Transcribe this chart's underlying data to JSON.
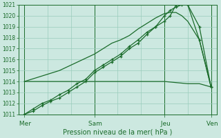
{
  "xlabel": "Pression niveau de la mer( hPa )",
  "bg_color": "#cce8e0",
  "grid_color": "#99ccbb",
  "line_color": "#1a6b2a",
  "ylim": [
    1011,
    1021
  ],
  "yticks": [
    1011,
    1012,
    1013,
    1014,
    1015,
    1016,
    1017,
    1018,
    1019,
    1020,
    1021
  ],
  "day_labels": [
    " Mer",
    " Sam",
    " Jeu",
    " Ven"
  ],
  "day_positions": [
    0,
    24,
    48,
    64
  ],
  "xlim": [
    -2,
    66
  ],
  "line1_x": [
    0,
    3,
    6,
    9,
    12,
    15,
    18,
    21,
    24,
    27,
    30,
    33,
    36,
    39,
    42,
    45,
    48,
    50,
    52,
    56,
    60,
    64
  ],
  "line1_y": [
    1011,
    1011.5,
    1012,
    1012.3,
    1012.8,
    1013.2,
    1013.8,
    1014.2,
    1015,
    1015.5,
    1016,
    1016.5,
    1017.2,
    1017.8,
    1018.5,
    1019.0,
    1019.5,
    1020.0,
    1021.0,
    1021.0,
    1017.8,
    1013.5
  ],
  "line2_x": [
    0,
    3,
    6,
    9,
    12,
    15,
    18,
    21,
    24,
    27,
    30,
    33,
    36,
    39,
    42,
    45,
    48,
    50,
    52,
    54,
    56,
    60,
    64
  ],
  "line2_y": [
    1011,
    1011.3,
    1011.8,
    1012.2,
    1012.5,
    1013.0,
    1013.5,
    1014.0,
    1014.8,
    1015.3,
    1015.8,
    1016.3,
    1017.0,
    1017.5,
    1018.3,
    1019.0,
    1020.0,
    1020.5,
    1020.8,
    1021.0,
    1021.0,
    1019.0,
    1013.5
  ],
  "line3_x": [
    0,
    12,
    24,
    36,
    48,
    56,
    60,
    64
  ],
  "line3_y": [
    1014.0,
    1014.0,
    1014.0,
    1014.0,
    1014.0,
    1013.8,
    1013.8,
    1013.5
  ],
  "line4_x": [
    0,
    12,
    24,
    27,
    30,
    33,
    36,
    39,
    42,
    45,
    48,
    50,
    52,
    54,
    56,
    60,
    64
  ],
  "line4_y": [
    1014.0,
    1015.0,
    1016.5,
    1017.0,
    1017.5,
    1017.8,
    1018.2,
    1018.8,
    1019.3,
    1019.8,
    1020.2,
    1020.3,
    1020.3,
    1020.0,
    1019.5,
    1017.8,
    1013.5
  ]
}
